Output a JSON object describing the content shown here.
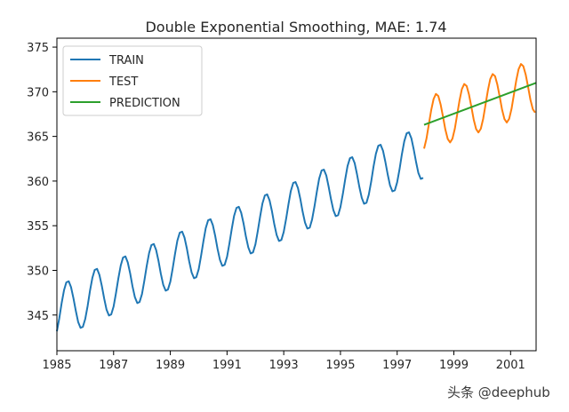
{
  "chart_data": {
    "type": "line",
    "title": "Double Exponential Smoothing, MAE: 1.74",
    "xlabel": "",
    "ylabel": "",
    "xlim": [
      1985.0,
      2001.9
    ],
    "ylim": [
      341.0,
      376.0
    ],
    "x_ticks": [
      1985,
      1987,
      1989,
      1991,
      1993,
      1995,
      1997,
      1999,
      2001
    ],
    "y_ticks": [
      345,
      350,
      355,
      360,
      365,
      370,
      375
    ],
    "grid": false,
    "legend_position": "top-left",
    "series": [
      {
        "name": "TRAIN",
        "color": "#1f77b4",
        "x_start": 1985.0,
        "x_end": 1997.95,
        "trend_start": 345.3,
        "trend_end": 363.3,
        "seasonal_amplitude": 3.0,
        "seasonal_peak_month": 4.5
      },
      {
        "name": "TEST",
        "color": "#ff7f0e",
        "x_start": 1997.95,
        "x_end": 2001.9,
        "trend_start": 366.3,
        "trend_end": 370.7,
        "seasonal_amplitude": 3.0,
        "seasonal_peak_month": 4.5
      },
      {
        "name": "PREDICTION",
        "color": "#2ca02c",
        "x": [
          1997.95,
          2001.9
        ],
        "y": [
          366.3,
          371.0
        ]
      }
    ]
  },
  "watermark": "头条 @deephub"
}
